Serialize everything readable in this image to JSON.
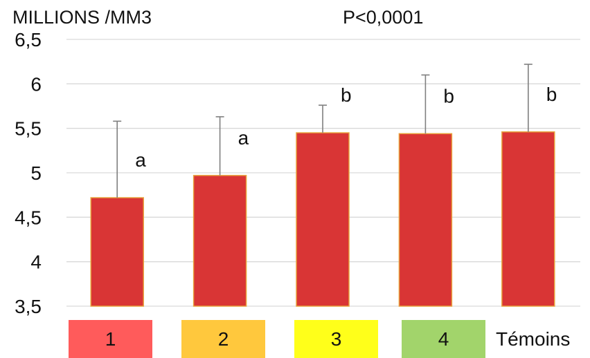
{
  "chart_data": {
    "type": "bar",
    "ylabel": "MILLIONS /MM3",
    "annotation": "P<0,0001",
    "ylim": [
      3.5,
      6.5
    ],
    "y_ticks": [
      "3,5",
      "4",
      "4,5",
      "5",
      "5,5",
      "6",
      "6,5"
    ],
    "y_tick_values": [
      3.5,
      4,
      4.5,
      5,
      5.5,
      6,
      6.5
    ],
    "grid": true,
    "categories": [
      "1",
      "2",
      "3",
      "4",
      "Témoins"
    ],
    "values": [
      4.72,
      4.97,
      5.45,
      5.44,
      5.46
    ],
    "error_upper": [
      5.58,
      5.63,
      5.76,
      6.1,
      6.22
    ],
    "significance_letters": [
      "a",
      "a",
      "b",
      "b",
      "b"
    ],
    "bar_color": "#D93535",
    "bar_border_color": "#E8A23C",
    "error_bar_color": "#7F7F7F"
  },
  "legend": {
    "groups": [
      {
        "label": "1",
        "color": "#FF5B5B"
      },
      {
        "label": "2",
        "color": "#FFC83D"
      },
      {
        "label": "3",
        "color": "#FFFF1A"
      },
      {
        "label": "4",
        "color": "#A2D46B"
      }
    ],
    "extra_label": "Témoins"
  }
}
